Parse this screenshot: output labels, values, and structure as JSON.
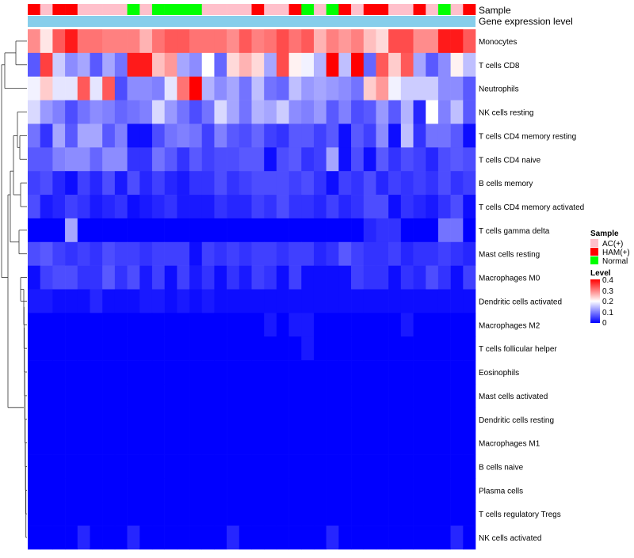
{
  "chart_data": {
    "type": "heatmap",
    "annotation_tracks": [
      "Sample",
      "Gene expression level"
    ],
    "rows": [
      "Monocytes",
      "T cells CD8",
      "Neutrophils",
      "NK cells resting",
      "T cells CD4 memory resting",
      "T cells CD4 naive",
      "B cells memory",
      "T cells CD4 memory activated",
      "T cells gamma delta",
      "Mast cells resting",
      "Macrophages M0",
      "Dendritic cells activated",
      "Macrophages M2",
      "T cells follicular helper",
      "Eosinophils",
      "Mast cells activated",
      "Dendritic cells resting",
      "Macrophages M1",
      "B cells naive",
      "Plasma cells",
      "T cells regulatory  Tregs",
      "NK cells activated"
    ],
    "column_groups": [
      "HAM(+)",
      "AC(+)",
      "HAM(+)",
      "HAM(+)",
      "AC(+)",
      "AC(+)",
      "AC(+)",
      "AC(+)",
      "Normal",
      "AC(+)",
      "Normal",
      "Normal",
      "Normal",
      "Normal",
      "AC(+)",
      "AC(+)",
      "AC(+)",
      "AC(+)",
      "HAM(+)",
      "AC(+)",
      "AC(+)",
      "HAM(+)",
      "Normal",
      "AC(+)",
      "Normal",
      "HAM(+)",
      "AC(+)",
      "HAM(+)",
      "HAM(+)",
      "AC(+)",
      "AC(+)",
      "HAM(+)",
      "AC(+)",
      "Normal",
      "AC(+)",
      "HAM(+)"
    ],
    "values": [
      [
        0.29,
        0.22,
        0.33,
        0.38,
        0.31,
        0.31,
        0.3,
        0.3,
        0.3,
        0.26,
        0.31,
        0.33,
        0.33,
        0.31,
        0.31,
        0.31,
        0.29,
        0.33,
        0.3,
        0.31,
        0.34,
        0.31,
        0.33,
        0.26,
        0.3,
        0.28,
        0.3,
        0.25,
        0.23,
        0.34,
        0.34,
        0.29,
        0.29,
        0.38,
        0.38,
        0.33
      ],
      [
        0.07,
        0.35,
        0.16,
        0.11,
        0.13,
        0.07,
        0.13,
        0.09,
        0.38,
        0.38,
        0.25,
        0.28,
        0.13,
        0.11,
        0.2,
        0.08,
        0.23,
        0.26,
        0.23,
        0.13,
        0.34,
        0.21,
        0.19,
        0.14,
        0.4,
        0.15,
        0.4,
        0.08,
        0.33,
        0.24,
        0.33,
        0.13,
        0.07,
        0.11,
        0.21,
        0.15
      ],
      [
        0.19,
        0.24,
        0.18,
        0.18,
        0.33,
        0.18,
        0.33,
        0.06,
        0.11,
        0.11,
        0.1,
        0.18,
        0.31,
        0.4,
        0.14,
        0.11,
        0.13,
        0.09,
        0.15,
        0.09,
        0.08,
        0.15,
        0.12,
        0.13,
        0.12,
        0.11,
        0.09,
        0.24,
        0.28,
        0.19,
        0.16,
        0.16,
        0.16,
        0.11,
        0.11,
        0.07
      ],
      [
        0.17,
        0.12,
        0.1,
        0.06,
        0.09,
        0.11,
        0.1,
        0.08,
        0.09,
        0.1,
        0.17,
        0.12,
        0.09,
        0.06,
        0.09,
        0.17,
        0.13,
        0.09,
        0.14,
        0.13,
        0.16,
        0.11,
        0.1,
        0.12,
        0.07,
        0.1,
        0.06,
        0.07,
        0.12,
        0.07,
        0.14,
        0.03,
        0.2,
        0.1,
        0.15,
        0.07
      ],
      [
        0.09,
        0.04,
        0.13,
        0.07,
        0.13,
        0.13,
        0.07,
        0.1,
        0.01,
        0.01,
        0.06,
        0.09,
        0.1,
        0.09,
        0.05,
        0.1,
        0.07,
        0.06,
        0.08,
        0.05,
        0.04,
        0.07,
        0.07,
        0.05,
        0.07,
        0.01,
        0.07,
        0.05,
        0.11,
        0.01,
        0.15,
        0.04,
        0.09,
        0.09,
        0.07,
        0.01
      ],
      [
        0.07,
        0.07,
        0.1,
        0.11,
        0.11,
        0.08,
        0.11,
        0.11,
        0.04,
        0.04,
        0.09,
        0.07,
        0.04,
        0.07,
        0.05,
        0.06,
        0.06,
        0.07,
        0.07,
        0.01,
        0.06,
        0.07,
        0.04,
        0.05,
        0.13,
        0.01,
        0.06,
        0.01,
        0.07,
        0.04,
        0.06,
        0.05,
        0.03,
        0.06,
        0.07,
        0.06
      ],
      [
        0.05,
        0.06,
        0.03,
        0.01,
        0.05,
        0.03,
        0.06,
        0.02,
        0.06,
        0.03,
        0.05,
        0.03,
        0.02,
        0.04,
        0.04,
        0.06,
        0.04,
        0.05,
        0.06,
        0.06,
        0.06,
        0.05,
        0.06,
        0.04,
        0.01,
        0.05,
        0.04,
        0.06,
        0.03,
        0.05,
        0.04,
        0.05,
        0.04,
        0.06,
        0.04,
        0.05
      ],
      [
        0.06,
        0.02,
        0.03,
        0.05,
        0.04,
        0.02,
        0.03,
        0.04,
        0.01,
        0.02,
        0.03,
        0.04,
        0.02,
        0.02,
        0.02,
        0.04,
        0.03,
        0.03,
        0.05,
        0.04,
        0.06,
        0.04,
        0.04,
        0.03,
        0.05,
        0.03,
        0.04,
        0.06,
        0.06,
        0.01,
        0.04,
        0.03,
        0.02,
        0.04,
        0.06,
        0.01
      ],
      [
        0.0,
        0.0,
        0.0,
        0.13,
        0.0,
        0.0,
        0.0,
        0.0,
        0.0,
        0.0,
        0.0,
        0.0,
        0.0,
        0.0,
        0.0,
        0.0,
        0.0,
        0.0,
        0.0,
        0.0,
        0.0,
        0.0,
        0.0,
        0.0,
        0.0,
        0.0,
        0.0,
        0.03,
        0.04,
        0.04,
        0.0,
        0.0,
        0.0,
        0.09,
        0.09,
        0.0
      ],
      [
        0.06,
        0.07,
        0.05,
        0.04,
        0.05,
        0.04,
        0.06,
        0.05,
        0.05,
        0.04,
        0.05,
        0.05,
        0.05,
        0.01,
        0.05,
        0.04,
        0.05,
        0.04,
        0.05,
        0.05,
        0.04,
        0.05,
        0.05,
        0.03,
        0.04,
        0.07,
        0.05,
        0.04,
        0.04,
        0.05,
        0.03,
        0.04,
        0.04,
        0.05,
        0.04,
        0.03
      ],
      [
        0.01,
        0.05,
        0.06,
        0.06,
        0.04,
        0.04,
        0.07,
        0.04,
        0.06,
        0.02,
        0.05,
        0.01,
        0.05,
        0.02,
        0.04,
        0.01,
        0.04,
        0.02,
        0.05,
        0.04,
        0.01,
        0.05,
        0.01,
        0.01,
        0.01,
        0.01,
        0.05,
        0.04,
        0.04,
        0.01,
        0.04,
        0.03,
        0.06,
        0.04,
        0.01,
        0.05
      ],
      [
        0.02,
        0.02,
        0.01,
        0.01,
        0.01,
        0.03,
        0.01,
        0.01,
        0.01,
        0.02,
        0.02,
        0.01,
        0.02,
        0.01,
        0.02,
        0.01,
        0.01,
        0.01,
        0.01,
        0.01,
        0.01,
        0.01,
        0.01,
        0.01,
        0.01,
        0.01,
        0.01,
        0.01,
        0.01,
        0.01,
        0.01,
        0.01,
        0.01,
        0.01,
        0.01,
        0.01
      ],
      [
        0.0,
        0.0,
        0.0,
        0.0,
        0.0,
        0.0,
        0.0,
        0.0,
        0.0,
        0.0,
        0.0,
        0.0,
        0.0,
        0.0,
        0.0,
        0.0,
        0.0,
        0.0,
        0.0,
        0.02,
        0.0,
        0.02,
        0.02,
        0.0,
        0.0,
        0.0,
        0.0,
        0.0,
        0.0,
        0.0,
        0.02,
        0.0,
        0.0,
        0.0,
        0.0,
        0.0
      ],
      [
        0.0,
        0.0,
        0.0,
        0.0,
        0.0,
        0.0,
        0.0,
        0.0,
        0.0,
        0.0,
        0.0,
        0.0,
        0.0,
        0.0,
        0.0,
        0.0,
        0.0,
        0.0,
        0.0,
        0.0,
        0.0,
        0.0,
        0.02,
        0.0,
        0.0,
        0.0,
        0.0,
        0.0,
        0.0,
        0.0,
        0.0,
        0.0,
        0.0,
        0.0,
        0.0,
        0.0
      ],
      [
        0.0,
        0.0,
        0.0,
        0.0,
        0.0,
        0.0,
        0.0,
        0.0,
        0.0,
        0.0,
        0.0,
        0.0,
        0.0,
        0.0,
        0.0,
        0.0,
        0.0,
        0.0,
        0.0,
        0.0,
        0.0,
        0.0,
        0.0,
        0.0,
        0.0,
        0.0,
        0.0,
        0.0,
        0.0,
        0.0,
        0.0,
        0.0,
        0.0,
        0.0,
        0.0,
        0.0
      ],
      [
        0.0,
        0.0,
        0.0,
        0.0,
        0.0,
        0.0,
        0.0,
        0.0,
        0.0,
        0.0,
        0.0,
        0.0,
        0.0,
        0.0,
        0.0,
        0.0,
        0.0,
        0.0,
        0.0,
        0.0,
        0.0,
        0.0,
        0.0,
        0.0,
        0.0,
        0.0,
        0.0,
        0.0,
        0.0,
        0.0,
        0.0,
        0.0,
        0.0,
        0.0,
        0.0,
        0.0
      ],
      [
        0.0,
        0.0,
        0.0,
        0.0,
        0.0,
        0.0,
        0.0,
        0.0,
        0.0,
        0.0,
        0.0,
        0.0,
        0.0,
        0.0,
        0.0,
        0.0,
        0.0,
        0.0,
        0.0,
        0.0,
        0.0,
        0.0,
        0.0,
        0.0,
        0.0,
        0.0,
        0.0,
        0.0,
        0.0,
        0.0,
        0.0,
        0.0,
        0.0,
        0.0,
        0.0,
        0.0
      ],
      [
        0.0,
        0.0,
        0.0,
        0.0,
        0.0,
        0.0,
        0.0,
        0.0,
        0.0,
        0.0,
        0.0,
        0.0,
        0.0,
        0.0,
        0.0,
        0.0,
        0.0,
        0.0,
        0.0,
        0.0,
        0.0,
        0.0,
        0.0,
        0.0,
        0.0,
        0.0,
        0.0,
        0.0,
        0.0,
        0.0,
        0.0,
        0.0,
        0.0,
        0.0,
        0.0,
        0.0
      ],
      [
        0.0,
        0.0,
        0.0,
        0.0,
        0.0,
        0.0,
        0.0,
        0.0,
        0.0,
        0.0,
        0.0,
        0.0,
        0.0,
        0.0,
        0.0,
        0.0,
        0.0,
        0.0,
        0.0,
        0.0,
        0.0,
        0.0,
        0.0,
        0.0,
        0.0,
        0.0,
        0.0,
        0.0,
        0.0,
        0.0,
        0.0,
        0.0,
        0.0,
        0.0,
        0.0,
        0.0
      ],
      [
        0.0,
        0.0,
        0.0,
        0.0,
        0.0,
        0.0,
        0.0,
        0.0,
        0.0,
        0.0,
        0.0,
        0.0,
        0.0,
        0.0,
        0.0,
        0.0,
        0.0,
        0.0,
        0.0,
        0.0,
        0.0,
        0.0,
        0.0,
        0.0,
        0.0,
        0.0,
        0.0,
        0.0,
        0.0,
        0.0,
        0.0,
        0.0,
        0.0,
        0.0,
        0.0,
        0.0
      ],
      [
        0.0,
        0.0,
        0.0,
        0.0,
        0.0,
        0.0,
        0.0,
        0.0,
        0.0,
        0.0,
        0.0,
        0.0,
        0.0,
        0.0,
        0.0,
        0.0,
        0.0,
        0.0,
        0.0,
        0.0,
        0.0,
        0.0,
        0.0,
        0.0,
        0.0,
        0.0,
        0.0,
        0.0,
        0.0,
        0.0,
        0.0,
        0.0,
        0.0,
        0.0,
        0.0,
        0.0
      ],
      [
        0.0,
        0.0,
        0.0,
        0.0,
        0.03,
        0.0,
        0.0,
        0.0,
        0.03,
        0.0,
        0.0,
        0.0,
        0.0,
        0.0,
        0.0,
        0.0,
        0.03,
        0.0,
        0.0,
        0.0,
        0.0,
        0.0,
        0.0,
        0.0,
        0.03,
        0.0,
        0.0,
        0.0,
        0.0,
        0.0,
        0.0,
        0.0,
        0.0,
        0.0,
        0.03,
        0.0
      ]
    ],
    "color_scale": {
      "min": 0,
      "max": 0.4,
      "low": "#0000FF",
      "mid": "#FFFFFF",
      "high": "#FF0000",
      "midpoint": 0.2
    },
    "legend": {
      "sample": {
        "title": "Sample",
        "entries": [
          {
            "label": "AC(+)",
            "color": "#FFC0CB"
          },
          {
            "label": "HAM(+)",
            "color": "#FF0000"
          },
          {
            "label": "Normal",
            "color": "#00FF00"
          }
        ]
      },
      "level": {
        "title": "Level",
        "ticks": [
          "0.4",
          "0.3",
          "0.2",
          "0.1",
          "0"
        ]
      },
      "placement": "right"
    },
    "gene_track_color": "#87CEEB"
  }
}
